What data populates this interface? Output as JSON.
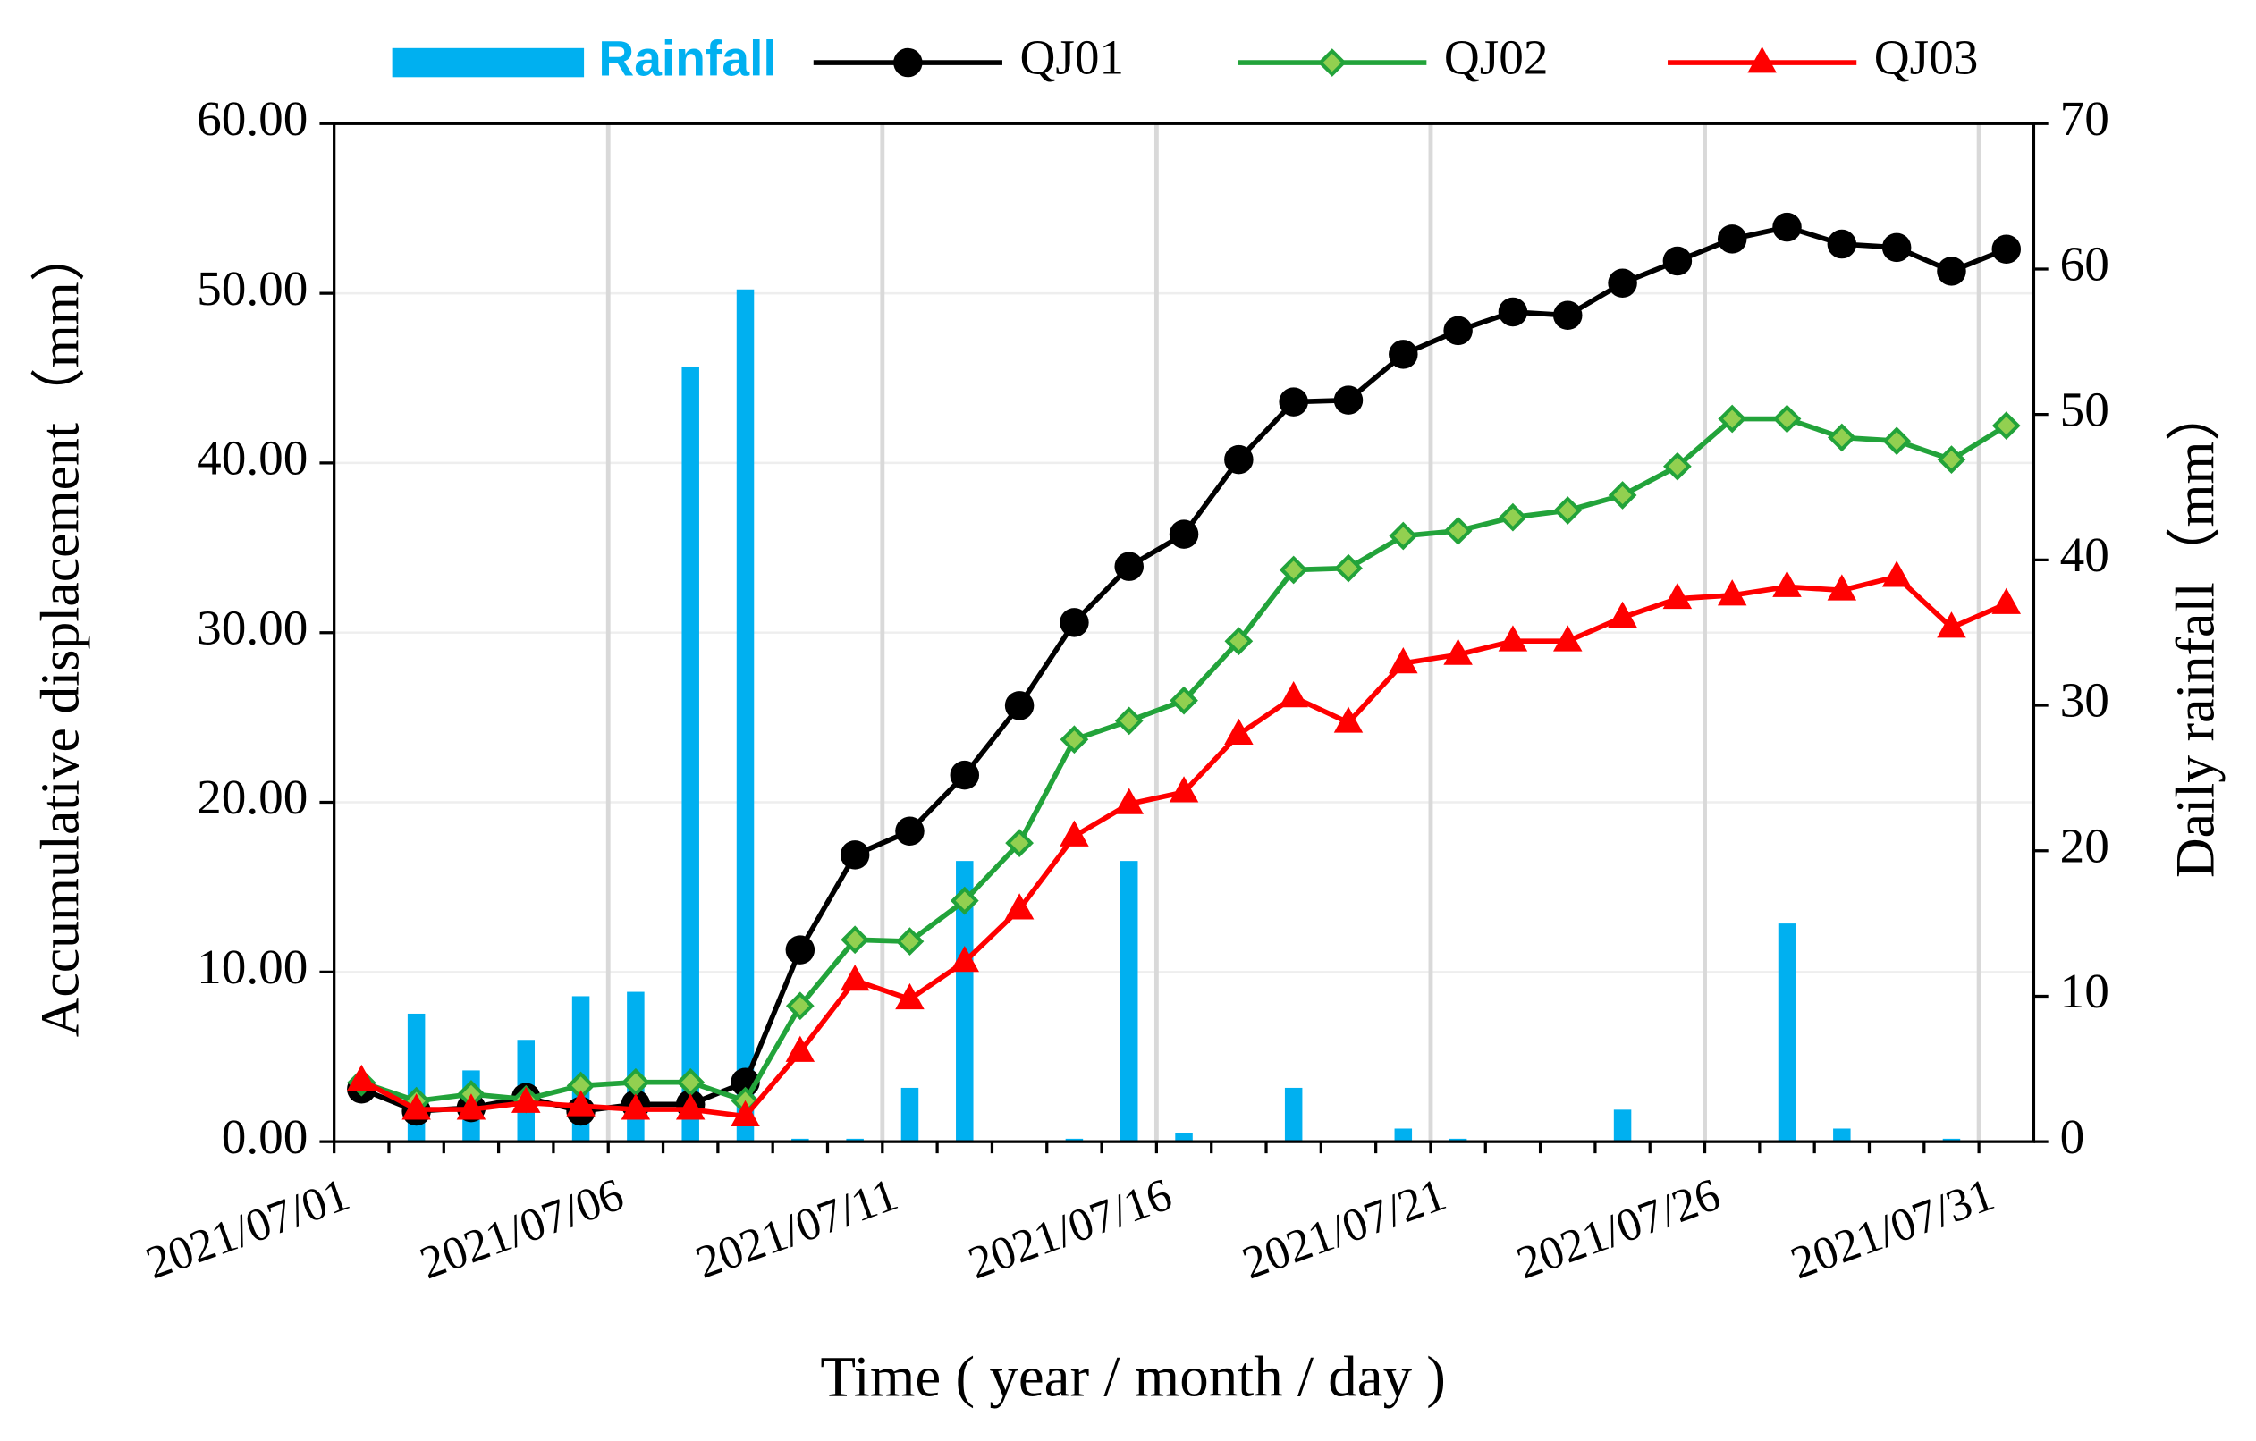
{
  "chart_data": {
    "type": "line",
    "xlabel": "Time ( year / month / day )",
    "ylabel": "Accumulative displacement（mm）",
    "y2label": "Daily rainfall（mm）",
    "categories": [
      "2021/07/01",
      null,
      null,
      null,
      null,
      "2021/07/06",
      null,
      null,
      null,
      null,
      "2021/07/11",
      null,
      null,
      null,
      null,
      "2021/07/16",
      null,
      null,
      null,
      null,
      "2021/07/21",
      null,
      null,
      null,
      null,
      "2021/07/26",
      null,
      null,
      null,
      null,
      "2021/07/31"
    ],
    "ylim": [
      0,
      60
    ],
    "yticks": [
      {
        "value": 0,
        "label": "0.00"
      },
      {
        "value": 10,
        "label": "10.00"
      },
      {
        "value": 20,
        "label": "20.00"
      },
      {
        "value": 30,
        "label": "30.00"
      },
      {
        "value": 40,
        "label": "40.00"
      },
      {
        "value": 50,
        "label": "50.00"
      },
      {
        "value": 60,
        "label": "60.00"
      }
    ],
    "y2lim": [
      0,
      70
    ],
    "y2ticks": [
      0,
      10,
      20,
      30,
      40,
      50,
      60,
      70
    ],
    "grid": true,
    "legend": "top",
    "series": [
      {
        "name": "Rainfall",
        "type": "bar",
        "axis": "y2",
        "color": "#00b0f0",
        "values": [
          0,
          8.8,
          4.9,
          7.0,
          10.0,
          10.3,
          53.3,
          58.6,
          0.2,
          0.2,
          3.7,
          19.3,
          0,
          0.2,
          19.3,
          0.6,
          0,
          3.7,
          0,
          0.9,
          0.2,
          0,
          0,
          2.2,
          0,
          0,
          15.0,
          0.9,
          0,
          0.2,
          0
        ]
      },
      {
        "name": "QJ01",
        "type": "line",
        "color": "#000000",
        "marker": "circle",
        "values": [
          3.1,
          1.8,
          2.0,
          2.6,
          1.8,
          2.2,
          2.2,
          3.5,
          11.3,
          16.9,
          18.3,
          21.6,
          25.7,
          30.6,
          33.9,
          35.8,
          40.2,
          43.6,
          43.7,
          46.4,
          47.8,
          48.9,
          48.7,
          50.6,
          51.9,
          53.2,
          53.9,
          52.9,
          52.7,
          51.3,
          52.6
        ]
      },
      {
        "name": "QJ02",
        "type": "line",
        "color": "#22a33a",
        "marker": "diamond",
        "values": [
          3.5,
          2.4,
          2.8,
          2.5,
          3.3,
          3.5,
          3.5,
          2.4,
          8.0,
          11.9,
          11.8,
          14.2,
          17.6,
          23.7,
          24.8,
          26.0,
          29.5,
          33.7,
          33.8,
          35.7,
          36.0,
          36.8,
          37.2,
          38.1,
          39.8,
          42.6,
          42.6,
          41.5,
          41.3,
          40.2,
          42.2
        ]
      },
      {
        "name": "QJ03",
        "type": "line",
        "color": "#ff0000",
        "marker": "triangle",
        "values": [
          3.6,
          1.9,
          1.9,
          2.3,
          2.1,
          1.9,
          1.9,
          1.5,
          5.3,
          9.5,
          8.4,
          10.6,
          13.7,
          18.0,
          19.9,
          20.6,
          24.0,
          26.2,
          24.7,
          28.2,
          28.7,
          29.5,
          29.5,
          30.9,
          32.0,
          32.2,
          32.7,
          32.5,
          33.3,
          30.3,
          31.7
        ]
      }
    ]
  }
}
